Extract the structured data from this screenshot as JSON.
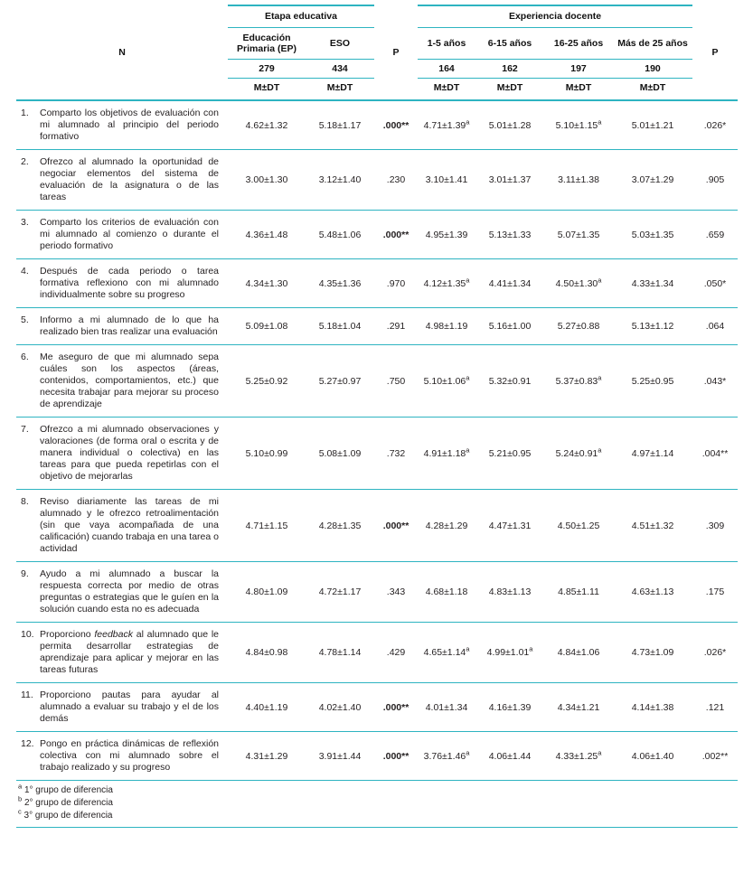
{
  "table": {
    "groups": [
      "Etapa educativa",
      "Experiencia docente"
    ],
    "header": {
      "n_label": "N",
      "p_label": "P",
      "mdt_label": "M±DT",
      "cols": [
        {
          "label": "Educación Primaria (EP)",
          "n": "279"
        },
        {
          "label": "ESO",
          "n": "434"
        },
        {
          "label": "1-5 años",
          "n": "164"
        },
        {
          "label": "6-15 años",
          "n": "162"
        },
        {
          "label": "16-25 años",
          "n": "197"
        },
        {
          "label": "Más de 25 años",
          "n": "190"
        }
      ]
    },
    "rows": [
      {
        "num": "1.",
        "text": "Comparto los objetivos de evaluación con mi alumnado al principio del periodo formativo",
        "cells": [
          {
            "v": "4.62±1.32"
          },
          {
            "v": "5.18±1.17"
          },
          {
            "v": ".000**",
            "bold": true
          },
          {
            "v": "4.71±1.39",
            "sup": "a"
          },
          {
            "v": "5.01±1.28"
          },
          {
            "v": "5.10±1.15",
            "sup": "a"
          },
          {
            "v": "5.01±1.21"
          },
          {
            "v": ".026*"
          }
        ]
      },
      {
        "num": "2.",
        "text": "Ofrezco al alumnado la oportunidad de negociar elementos del sistema de evaluación de la asignatura o de las tareas",
        "cells": [
          {
            "v": "3.00±1.30"
          },
          {
            "v": "3.12±1.40"
          },
          {
            "v": ".230"
          },
          {
            "v": "3.10±1.41"
          },
          {
            "v": "3.01±1.37"
          },
          {
            "v": "3.11±1.38"
          },
          {
            "v": "3.07±1.29"
          },
          {
            "v": ".905"
          }
        ]
      },
      {
        "num": "3.",
        "text": "Comparto los criterios de evaluación con mi alumnado al comienzo o durante el periodo formativo",
        "cells": [
          {
            "v": "4.36±1.48"
          },
          {
            "v": "5.48±1.06"
          },
          {
            "v": ".000**",
            "bold": true
          },
          {
            "v": "4.95±1.39"
          },
          {
            "v": "5.13±1.33"
          },
          {
            "v": "5.07±1.35"
          },
          {
            "v": "5.03±1.35"
          },
          {
            "v": ".659"
          }
        ]
      },
      {
        "num": "4.",
        "text": "Después de cada periodo o tarea formativa reflexiono con mi alumnado individualmente sobre su progreso",
        "cells": [
          {
            "v": "4.34±1.30"
          },
          {
            "v": "4.35±1.36"
          },
          {
            "v": ".970"
          },
          {
            "v": "4.12±1.35",
            "sup": "a"
          },
          {
            "v": "4.41±1.34"
          },
          {
            "v": "4.50±1.30",
            "sup": "a"
          },
          {
            "v": "4.33±1.34"
          },
          {
            "v": ".050*"
          }
        ]
      },
      {
        "num": "5.",
        "text": "Informo a mi alumnado de lo que ha realizado bien tras realizar una evaluación",
        "cells": [
          {
            "v": "5.09±1.08"
          },
          {
            "v": "5.18±1.04"
          },
          {
            "v": ".291"
          },
          {
            "v": "4.98±1.19"
          },
          {
            "v": "5.16±1.00"
          },
          {
            "v": "5.27±0.88"
          },
          {
            "v": "5.13±1.12"
          },
          {
            "v": ".064"
          }
        ]
      },
      {
        "num": "6.",
        "text": "Me aseguro de que mi alumnado sepa cuáles son los aspectos (áreas, contenidos, comportamientos, etc.) que necesita trabajar para mejorar su proceso de aprendizaje",
        "cells": [
          {
            "v": "5.25±0.92"
          },
          {
            "v": "5.27±0.97"
          },
          {
            "v": ".750"
          },
          {
            "v": "5.10±1.06",
            "sup": "a"
          },
          {
            "v": "5.32±0.91"
          },
          {
            "v": "5.37±0.83",
            "sup": "a"
          },
          {
            "v": "5.25±0.95"
          },
          {
            "v": ".043*"
          }
        ]
      },
      {
        "num": "7.",
        "text": "Ofrezco a mi alumnado observaciones y valoraciones (de forma oral o escrita y de manera individual o colectiva) en las tareas para que pueda repetirlas con el objetivo de mejorarlas",
        "cells": [
          {
            "v": "5.10±0.99"
          },
          {
            "v": "5.08±1.09"
          },
          {
            "v": ".732"
          },
          {
            "v": "4.91±1.18",
            "sup": "a"
          },
          {
            "v": "5.21±0.95"
          },
          {
            "v": "5.24±0.91",
            "sup": "a"
          },
          {
            "v": "4.97±1.14"
          },
          {
            "v": ".004**"
          }
        ]
      },
      {
        "num": "8.",
        "text": "Reviso diariamente las tareas de mi alumnado y le ofrezco retroalimentación (sin que vaya acompañada de una calificación) cuando trabaja en una tarea o actividad",
        "cells": [
          {
            "v": "4.71±1.15"
          },
          {
            "v": "4.28±1.35"
          },
          {
            "v": ".000**",
            "bold": true
          },
          {
            "v": "4.28±1.29"
          },
          {
            "v": "4.47±1.31"
          },
          {
            "v": "4.50±1.25"
          },
          {
            "v": "4.51±1.32"
          },
          {
            "v": ".309"
          }
        ]
      },
      {
        "num": "9.",
        "text": "Ayudo a mi alumnado a buscar la respuesta correcta por medio de otras preguntas o estrategias que le guíen en la solución cuando esta no es adecuada",
        "cells": [
          {
            "v": "4.80±1.09"
          },
          {
            "v": "4.72±1.17"
          },
          {
            "v": ".343"
          },
          {
            "v": "4.68±1.18"
          },
          {
            "v": "4.83±1.13"
          },
          {
            "v": "4.85±1.11"
          },
          {
            "v": "4.63±1.13"
          },
          {
            "v": ".175"
          }
        ]
      },
      {
        "num": "10.",
        "text_parts": [
          {
            "t": "Proporciono "
          },
          {
            "t": "feedback",
            "i": true
          },
          {
            "t": " al alumnado que le permita desarrollar estrategias de aprendizaje para aplicar y mejorar en las tareas futuras"
          }
        ],
        "cells": [
          {
            "v": "4.84±0.98"
          },
          {
            "v": "4.78±1.14"
          },
          {
            "v": ".429"
          },
          {
            "v": "4.65±1.14",
            "sup": "a"
          },
          {
            "v": "4.99±1.01",
            "sup": "a"
          },
          {
            "v": "4.84±1.06"
          },
          {
            "v": "4.73±1.09"
          },
          {
            "v": ".026*"
          }
        ]
      },
      {
        "num": "11.",
        "text": "Proporciono pautas para ayudar al alumnado a evaluar su trabajo y el de los demás",
        "cells": [
          {
            "v": "4.40±1.19"
          },
          {
            "v": "4.02±1.40"
          },
          {
            "v": ".000**",
            "bold": true
          },
          {
            "v": "4.01±1.34"
          },
          {
            "v": "4.16±1.39"
          },
          {
            "v": "4.34±1.21"
          },
          {
            "v": "4.14±1.38"
          },
          {
            "v": ".121"
          }
        ]
      },
      {
        "num": "12.",
        "text": "Pongo en práctica dinámicas de reflexión colectiva con mi alumnado sobre el trabajo realizado y su progreso",
        "cells": [
          {
            "v": "4.31±1.29"
          },
          {
            "v": "3.91±1.44"
          },
          {
            "v": ".000**",
            "bold": true
          },
          {
            "v": "3.76±1.46",
            "sup": "a"
          },
          {
            "v": "4.06±1.44"
          },
          {
            "v": "4.33±1.25",
            "sup": "a"
          },
          {
            "v": "4.06±1.40"
          },
          {
            "v": ".002**"
          }
        ]
      }
    ],
    "footnotes": [
      {
        "marker": "a",
        "text": "1° grupo de diferencia"
      },
      {
        "marker": "b",
        "text": "2° grupo de diferencia"
      },
      {
        "marker": "c",
        "text": "3° grupo de diferencia"
      }
    ]
  }
}
